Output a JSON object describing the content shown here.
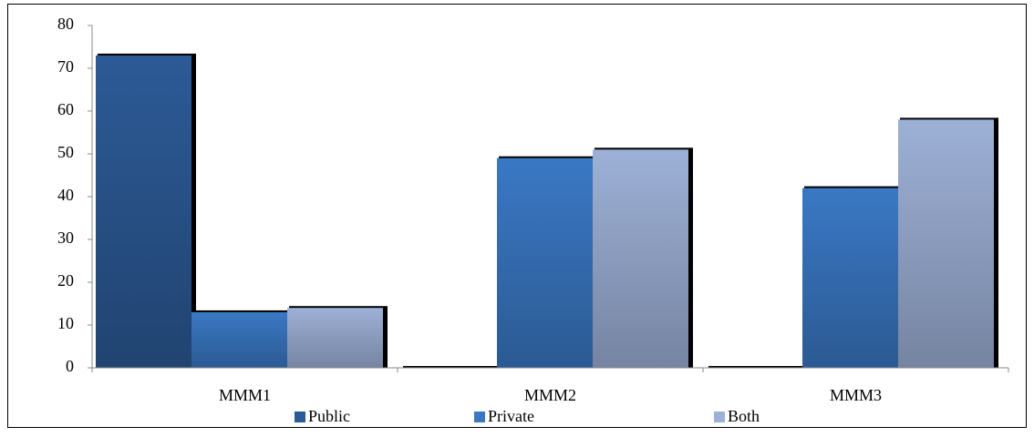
{
  "chart_data": {
    "type": "bar",
    "categories": [
      "MMM1",
      "MMM2",
      "MMM3"
    ],
    "series": [
      {
        "name": "Public",
        "color": "#2c5a96",
        "values": [
          73,
          0,
          0
        ]
      },
      {
        "name": "Private",
        "color": "#3a78c4",
        "values": [
          13,
          49,
          42
        ]
      },
      {
        "name": "Both",
        "color": "#9db0d6",
        "values": [
          14,
          51,
          58
        ]
      }
    ],
    "ylim": [
      0,
      80
    ],
    "yticks": [
      0,
      10,
      20,
      30,
      40,
      50,
      60,
      70,
      80
    ],
    "legend": "bottom"
  }
}
